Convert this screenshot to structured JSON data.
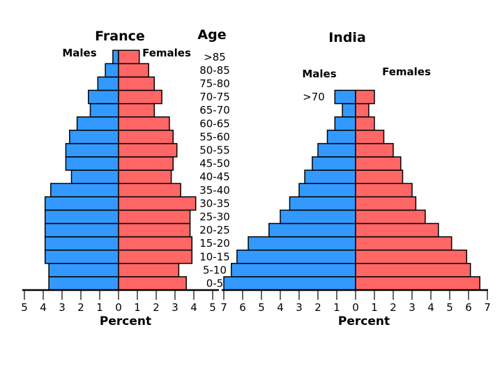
{
  "age_header": "Age",
  "chart_data": [
    {
      "type": "bar",
      "orientation": "population-pyramid",
      "title": "France",
      "xlabel": "Percent",
      "left_label": "Males",
      "right_label": "Females",
      "xlim": [
        -5,
        5
      ],
      "x_ticks": [
        "5",
        "4",
        "3",
        "2",
        "1",
        "0",
        "1",
        "2",
        "3",
        "4",
        "5"
      ],
      "categories": [
        "0-5",
        "5-10",
        "10-15",
        "15-20",
        "20-25",
        "25-30",
        "30-35",
        "35-40",
        "40-45",
        "45-50",
        "50-55",
        "55-60",
        "60-65",
        "65-70",
        "70-75",
        "75-80",
        "80-85",
        ">85"
      ],
      "series": [
        {
          "name": "Males",
          "values": [
            3.7,
            3.7,
            3.9,
            3.9,
            3.9,
            3.9,
            3.9,
            3.6,
            2.5,
            2.8,
            2.8,
            2.6,
            2.2,
            1.5,
            1.6,
            1.1,
            0.7,
            0.3
          ]
        },
        {
          "name": "Females",
          "values": [
            3.6,
            3.2,
            3.9,
            3.9,
            3.8,
            3.8,
            4.1,
            3.3,
            2.8,
            2.9,
            3.1,
            2.9,
            2.7,
            1.9,
            2.3,
            1.9,
            1.6,
            1.1
          ]
        }
      ],
      "colors": {
        "left": "#3399ff",
        "right": "#ff6666"
      }
    },
    {
      "type": "bar",
      "orientation": "population-pyramid",
      "title": "India",
      "xlabel": "Percent",
      "left_label": "Males",
      "right_label": "Females",
      "xlim": [
        -7,
        7
      ],
      "x_ticks": [
        "7",
        "6",
        "5",
        "4",
        "3",
        "2",
        "1",
        "0",
        "1",
        "2",
        "3",
        "4",
        "5",
        "6",
        "7"
      ],
      "categories": [
        "0-5",
        "5-10",
        "10-15",
        "15-20",
        "20-25",
        "25-30",
        "30-35",
        "35-40",
        "40-45",
        "45-50",
        "50-55",
        "55-60",
        "60-65",
        "65-70",
        ">70"
      ],
      "top_category_label": ">70",
      "series": [
        {
          "name": "Males",
          "values": [
            7.0,
            6.6,
            6.3,
            5.7,
            4.6,
            4.0,
            3.5,
            3.0,
            2.7,
            2.3,
            2.0,
            1.5,
            1.1,
            0.7,
            1.1
          ]
        },
        {
          "name": "Females",
          "values": [
            6.6,
            6.1,
            5.9,
            5.1,
            4.4,
            3.7,
            3.2,
            3.0,
            2.5,
            2.4,
            2.0,
            1.5,
            1.0,
            0.7,
            1.0
          ]
        }
      ],
      "colors": {
        "left": "#3399ff",
        "right": "#ff6666"
      }
    }
  ]
}
